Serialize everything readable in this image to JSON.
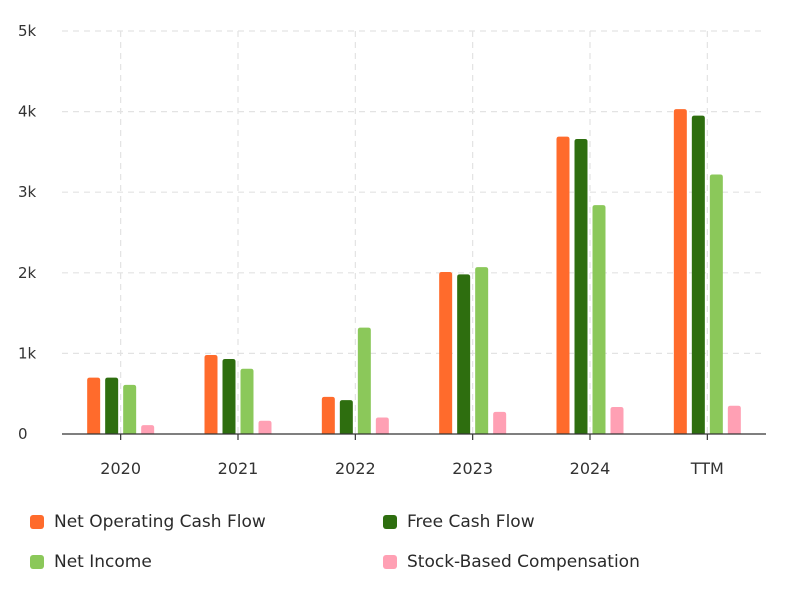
{
  "chart_data": {
    "type": "bar",
    "categories": [
      "2020",
      "2021",
      "2022",
      "2023",
      "2024",
      "TTM"
    ],
    "y_ticks": [
      "0",
      "1k",
      "2k",
      "3k",
      "4k",
      "5k"
    ],
    "ylim": [
      0,
      5000
    ],
    "grid": true,
    "legend_position": "bottom",
    "series": [
      {
        "name": "Net Operating Cash Flow",
        "color": "#ff6b2c",
        "values": [
          700,
          980,
          460,
          2010,
          3690,
          4030
        ]
      },
      {
        "name": "Free Cash Flow",
        "color": "#2e6e0f",
        "values": [
          700,
          930,
          420,
          1980,
          3660,
          3950
        ]
      },
      {
        "name": "Net Income",
        "color": "#8bc85a",
        "values": [
          610,
          810,
          1320,
          2070,
          2840,
          3220
        ]
      },
      {
        "name": "Stock-Based Compensation",
        "color": "#ffa0b4",
        "values": [
          110,
          165,
          205,
          275,
          335,
          350
        ]
      }
    ]
  }
}
